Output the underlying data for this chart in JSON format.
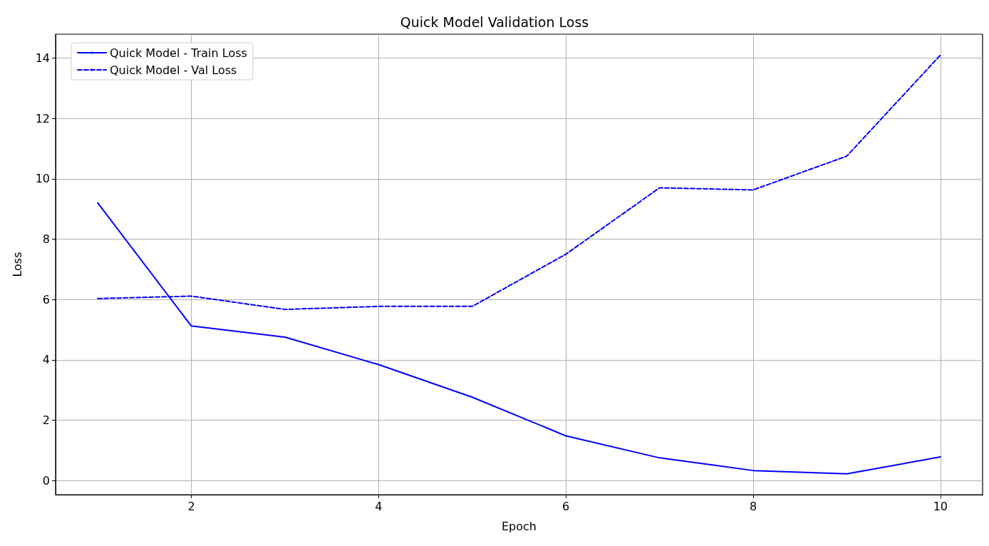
{
  "chart_data": {
    "type": "line",
    "title": "Quick Model Validation Loss",
    "xlabel": "Epoch",
    "ylabel": "Loss",
    "x": [
      1,
      2,
      3,
      4,
      5,
      6,
      7,
      8,
      9,
      10
    ],
    "series": [
      {
        "name": "Quick Model - Train Loss",
        "color": "#0000ff",
        "line_style": "solid",
        "values": [
          9.2,
          5.12,
          4.75,
          3.84,
          2.76,
          1.48,
          0.75,
          0.33,
          0.22,
          0.78
        ]
      },
      {
        "name": "Quick Model - Val Loss",
        "color": "#0000ff",
        "line_style": "dashed",
        "values": [
          6.03,
          6.11,
          5.67,
          5.77,
          5.77,
          7.5,
          9.7,
          9.63,
          10.75,
          14.1
        ]
      }
    ],
    "xlim": [
      0.55,
      10.45
    ],
    "ylim": [
      -0.47,
      14.79
    ],
    "xticks": [
      2,
      4,
      6,
      8,
      10
    ],
    "yticks": [
      0,
      2,
      4,
      6,
      8,
      10,
      12,
      14
    ],
    "grid": true,
    "legend": "top left",
    "marker": "none"
  }
}
